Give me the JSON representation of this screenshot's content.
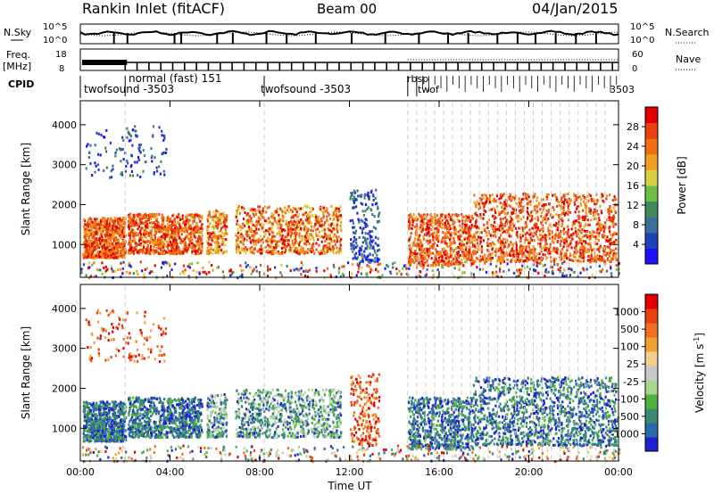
{
  "header": {
    "title": "Rankin Inlet (fitACF)",
    "beam": "Beam 00",
    "date": "04/Jan/2015"
  },
  "noise_panel": {
    "left_label": "N.Sky",
    "right_label": "N.Search",
    "ticks": [
      "10^5",
      "10^0"
    ]
  },
  "freq_panel": {
    "left_label_1": "Freq.",
    "left_label_2": "[MHz]",
    "left_ticks": [
      "18",
      "8"
    ],
    "right_label": "Nave",
    "right_ticks": [
      "60",
      "0"
    ]
  },
  "cpid_panel": {
    "label": "CPID",
    "programs": [
      {
        "text": "twofsound -3503",
        "row": 2
      },
      {
        "text": "normal (fast) 151",
        "row": 1
      },
      {
        "text": "twofsound -3503",
        "row": 2
      },
      {
        "text": "rbsp",
        "row": 1
      },
      {
        "text": "twof",
        "row": 2
      },
      {
        "text": "3503",
        "row": 2
      }
    ]
  },
  "chart_data": [
    {
      "type": "heatmap",
      "name": "power",
      "ylabel": "Slant Range [km]",
      "ylim": [
        180,
        4600
      ],
      "yticks": [
        1000,
        2000,
        3000,
        4000
      ],
      "xlim": [
        0,
        24
      ],
      "xticks": [
        "00:00",
        "04:00",
        "08:00",
        "12:00",
        "16:00",
        "20:00",
        "00:00"
      ],
      "colorbar": {
        "label": "Power [dB]",
        "ticks": [
          4,
          8,
          12,
          16,
          20,
          24,
          28
        ],
        "colors": [
          "#1e10ff",
          "#2040b8",
          "#3a6f9c",
          "#3c8a5e",
          "#6cc04a",
          "#d8d040",
          "#f0a020",
          "#f07010",
          "#e84010",
          "#e00000"
        ]
      }
    },
    {
      "type": "heatmap",
      "name": "velocity",
      "ylabel": "Slant Range [km]",
      "ylim": [
        180,
        4600
      ],
      "yticks": [
        1000,
        2000,
        3000,
        4000
      ],
      "xlim": [
        0,
        24
      ],
      "xlabel": "Time UT",
      "xticks": [
        "00:00",
        "04:00",
        "08:00",
        "12:00",
        "16:00",
        "20:00",
        "00:00"
      ],
      "colorbar": {
        "label_main": "Velocity",
        "label_unit": "[m s",
        "label_exp": "-1",
        "label_close": "]",
        "ticks": [
          "1000",
          "500",
          "100",
          "25",
          "-25",
          "-100",
          "-500",
          "-1000"
        ],
        "colors": [
          "#2020d0",
          "#2a6aa8",
          "#3a8a70",
          "#50b040",
          "#a8d890",
          "#c8c8c8",
          "#f0d090",
          "#f0a030",
          "#f07020",
          "#e84010",
          "#e00000"
        ]
      }
    }
  ]
}
